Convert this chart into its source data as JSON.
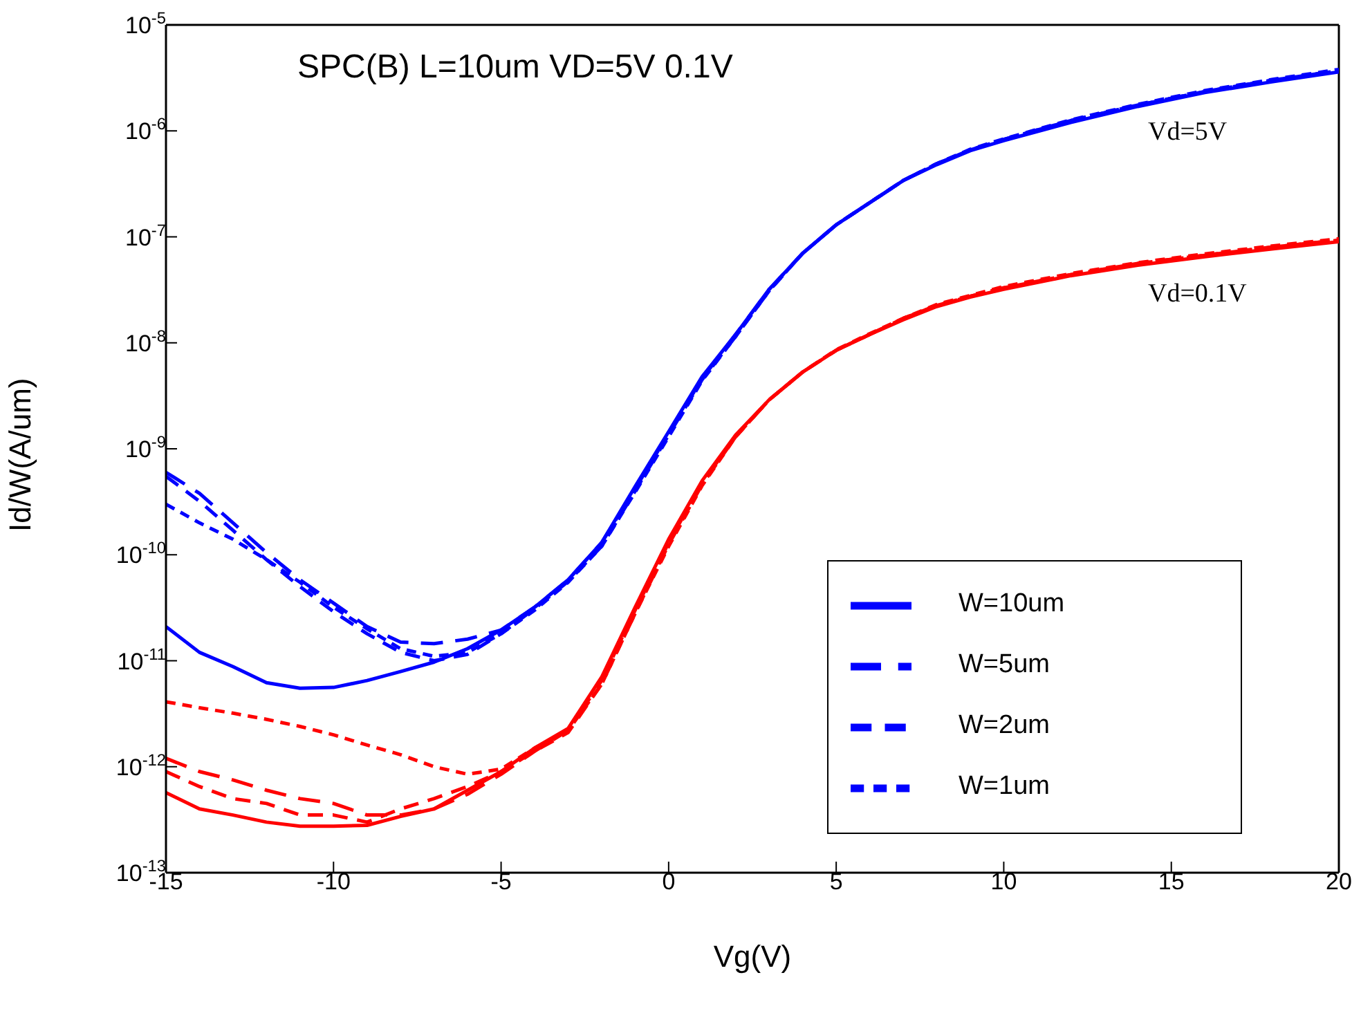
{
  "chart_data": {
    "type": "line",
    "title": "SPC(B) L=10um VD=5V 0.1V",
    "xlabel": "Vg(V)",
    "ylabel": "Id/W(A/um)",
    "log": "y",
    "xlim": [
      -15,
      20
    ],
    "xticks": [
      -15,
      -10,
      -5,
      0,
      5,
      10,
      15,
      20
    ],
    "ylim": [
      1e-13,
      1e-05
    ],
    "yticks": [
      {
        "value": 1e-13,
        "label": "10$^{-13}$"
      },
      {
        "value": 1e-12,
        "label": "10$^{-12}$"
      },
      {
        "value": 1e-11,
        "label": "10$^{-11}$"
      },
      {
        "value": 1e-10,
        "label": "10$^{-10}$"
      },
      {
        "value": 1e-09,
        "label": "10$^{-9}$"
      },
      {
        "value": 1e-08,
        "label": "10$^{-8}$"
      },
      {
        "value": 1e-07,
        "label": "10$^{-7}$"
      },
      {
        "value": 1e-06,
        "label": "10$^{-6}$"
      },
      {
        "value": 1e-05,
        "label": "10$^{-5}$"
      }
    ],
    "grid": false,
    "legend": "bottom right",
    "marker": "none",
    "x": [
      -15,
      -14,
      -13,
      -12,
      -11,
      -10,
      -9,
      -8,
      -7,
      -6,
      -5,
      -4,
      -3,
      -2,
      -1,
      0,
      1,
      2,
      3,
      4,
      5,
      6,
      7,
      8,
      9,
      10,
      12,
      14,
      16,
      18,
      20
    ],
    "series": [
      {
        "name": "W=10um",
        "color": "#0000ff",
        "line_style": "solid",
        "values": [
          2.1e-11,
          1.2e-11,
          8.8e-12,
          6.2e-12,
          5.5e-12,
          5.6e-12,
          6.5e-12,
          7.9e-12,
          9.7e-12,
          1.3e-11,
          1.95e-11,
          3.2e-11,
          5.8e-11,
          1.3e-10,
          4.4e-10,
          1.45e-09,
          4.8e-09,
          1.2e-08,
          3.2e-08,
          7e-08,
          1.3e-07,
          2.1e-07,
          3.4e-07,
          4.8e-07,
          6.5e-07,
          8.1e-07,
          1.2e-06,
          1.7e-06,
          2.3e-06,
          2.9e-06,
          3.6e-06
        ]
      },
      {
        "name": "W=5um",
        "color": "#0000ff",
        "line_style": "dashed",
        "values": [
          6e-10,
          3.8e-10,
          2e-10,
          1.05e-10,
          5.8e-11,
          3.5e-11,
          2.1e-11,
          1.5e-11,
          1.45e-11,
          1.6e-11,
          1.95e-11,
          3.2e-11,
          5.8e-11,
          1.3e-10,
          4.2e-10,
          1.4e-09,
          4.6e-09,
          1.2e-08,
          3.2e-08,
          7e-08,
          1.3e-07,
          2.1e-07,
          3.4e-07,
          4.9e-07,
          6.6e-07,
          8.3e-07,
          1.25e-06,
          1.75e-06,
          2.35e-06,
          3e-06,
          3.7e-06
        ]
      },
      {
        "name": "W=2um",
        "color": "#0000ff",
        "line_style": "dashed",
        "values": [
          5.5e-10,
          3.2e-10,
          1.7e-10,
          9e-11,
          5e-11,
          2.9e-11,
          1.8e-11,
          1.2e-11,
          1e-11,
          1.15e-11,
          1.8e-11,
          3.1e-11,
          5.6e-11,
          1.2e-10,
          4e-10,
          1.35e-09,
          4.5e-09,
          1.15e-08,
          3.1e-08,
          7e-08,
          1.3e-07,
          2.1e-07,
          3.4e-07,
          4.9e-07,
          6.6e-07,
          8.3e-07,
          1.25e-06,
          1.75e-06,
          2.35e-06,
          3e-06,
          3.7e-06
        ]
      },
      {
        "name": "W=1um",
        "color": "#0000ff",
        "line_style": "dashed",
        "values": [
          3e-10,
          2e-10,
          1.4e-10,
          9e-11,
          5.5e-11,
          3.2e-11,
          2e-11,
          1.3e-11,
          1.1e-11,
          1.2e-11,
          1.8e-11,
          3e-11,
          5.5e-11,
          1.2e-10,
          3.9e-10,
          1.3e-09,
          4.4e-09,
          1.15e-08,
          3.1e-08,
          7e-08,
          1.3e-07,
          2.1e-07,
          3.4e-07,
          4.9e-07,
          6.7e-07,
          8.4e-07,
          1.27e-06,
          1.78e-06,
          2.4e-06,
          3.05e-06,
          3.8e-06
        ]
      },
      {
        "color": "#ff0000",
        "line_style": "solid",
        "values": [
          5.7e-13,
          4e-13,
          3.5e-13,
          3e-13,
          2.75e-13,
          2.75e-13,
          2.8e-13,
          3.4e-13,
          4e-13,
          6e-13,
          9e-13,
          1.5e-12,
          2.3e-12,
          7e-12,
          3.2e-11,
          1.4e-10,
          5e-10,
          1.35e-09,
          2.9e-09,
          5.3e-09,
          8.5e-09,
          1.2e-08,
          1.65e-08,
          2.2e-08,
          2.7e-08,
          3.2e-08,
          4.3e-08,
          5.4e-08,
          6.5e-08,
          7.7e-08,
          9e-08
        ]
      },
      {
        "color": "#ff0000",
        "line_style": "dashed",
        "values": [
          1.2e-12,
          9e-13,
          7.5e-13,
          6e-13,
          5e-13,
          4.5e-13,
          3.5e-13,
          3.5e-13,
          4e-13,
          5.5e-13,
          8.5e-13,
          1.4e-12,
          2.2e-12,
          6.5e-12,
          3e-11,
          1.3e-10,
          4.8e-10,
          1.3e-09,
          2.9e-09,
          5.3e-09,
          8.5e-09,
          1.2e-08,
          1.7e-08,
          2.25e-08,
          2.75e-08,
          3.3e-08,
          4.4e-08,
          5.6e-08,
          6.7e-08,
          8e-08,
          9.3e-08
        ]
      },
      {
        "color": "#ff0000",
        "line_style": "dashed",
        "values": [
          9e-13,
          6.5e-13,
          5e-13,
          4.5e-13,
          3.5e-13,
          3.5e-13,
          3e-13,
          4e-13,
          5e-13,
          6.5e-13,
          9e-13,
          1.4e-12,
          2.1e-12,
          6e-12,
          2.8e-11,
          1.25e-10,
          4.6e-10,
          1.3e-09,
          2.9e-09,
          5.3e-09,
          8.5e-09,
          1.2e-08,
          1.7e-08,
          2.25e-08,
          2.75e-08,
          3.3e-08,
          4.4e-08,
          5.6e-08,
          6.7e-08,
          8e-08,
          9.3e-08
        ]
      },
      {
        "color": "#ff0000",
        "line_style": "dashed",
        "values": [
          4.1e-12,
          3.6e-12,
          3.2e-12,
          2.8e-12,
          2.4e-12,
          2e-12,
          1.6e-12,
          1.3e-12,
          1e-12,
          8.5e-13,
          9.5e-13,
          1.5e-12,
          2.2e-12,
          6e-12,
          2.8e-11,
          1.2e-10,
          4.5e-10,
          1.3e-09,
          2.9e-09,
          5.3e-09,
          8.6e-09,
          1.22e-08,
          1.7e-08,
          2.3e-08,
          2.8e-08,
          3.4e-08,
          4.5e-08,
          5.7e-08,
          6.9e-08,
          8.2e-08,
          9.6e-08
        ]
      }
    ],
    "annotations": [
      "Vd=5V",
      "Vd=0.1V"
    ]
  }
}
